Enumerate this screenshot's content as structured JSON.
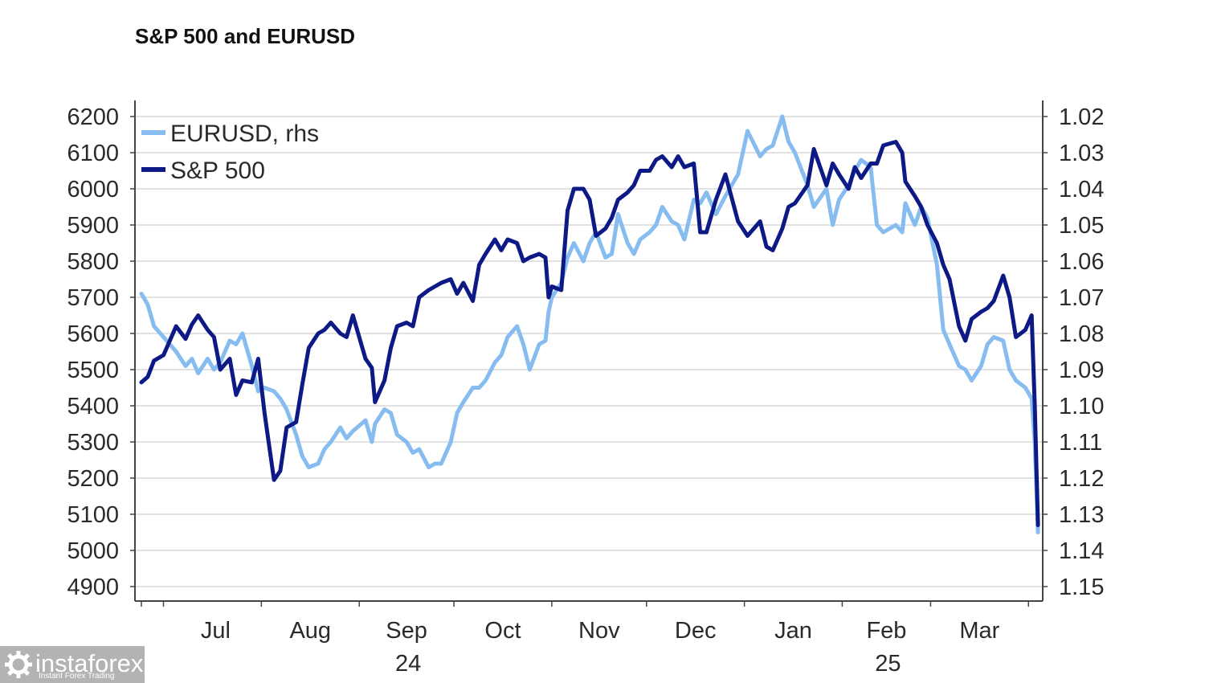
{
  "chart_data": {
    "type": "line",
    "title": "S&P 500 and EURUSD",
    "y_left": {
      "ticks": [
        "4900",
        "5000",
        "5100",
        "5200",
        "5300",
        "5400",
        "5500",
        "5600",
        "5700",
        "5800",
        "5900",
        "6000",
        "6100",
        "6200"
      ],
      "range": [
        4900,
        6200
      ]
    },
    "y_right": {
      "ticks": [
        "1.02",
        "1.03",
        "1.04",
        "1.05",
        "1.06",
        "1.07",
        "1.08",
        "1.09",
        "1.10",
        "1.11",
        "1.12",
        "1.13",
        "1.14",
        "1.15"
      ],
      "range": [
        1.15,
        1.02
      ],
      "inverted": true
    },
    "x_axis": {
      "months": [
        "Jul",
        "Aug",
        "Sep",
        "Oct",
        "Nov",
        "Dec",
        "Jan",
        "Feb",
        "Mar"
      ],
      "years": [
        {
          "label": "24",
          "under": "Sep"
        },
        {
          "label": "25",
          "under": "Feb"
        }
      ],
      "range": [
        "2024-06-24",
        "2025-04-05"
      ]
    },
    "legend": {
      "placement": "top-left",
      "entries": [
        "EURUSD, rhs",
        "S&P 500"
      ]
    },
    "series": [
      {
        "name": "S&P 500",
        "axis": "left",
        "color": "#0d1a86",
        "x": [
          "2024-06-24",
          "2024-06-26",
          "2024-06-28",
          "2024-07-01",
          "2024-07-03",
          "2024-07-05",
          "2024-07-08",
          "2024-07-10",
          "2024-07-12",
          "2024-07-15",
          "2024-07-17",
          "2024-07-19",
          "2024-07-22",
          "2024-07-24",
          "2024-07-26",
          "2024-07-29",
          "2024-07-31",
          "2024-08-02",
          "2024-08-05",
          "2024-08-07",
          "2024-08-09",
          "2024-08-12",
          "2024-08-14",
          "2024-08-16",
          "2024-08-19",
          "2024-08-21",
          "2024-08-23",
          "2024-08-26",
          "2024-08-28",
          "2024-08-30",
          "2024-09-03",
          "2024-09-05",
          "2024-09-06",
          "2024-09-09",
          "2024-09-11",
          "2024-09-13",
          "2024-09-16",
          "2024-09-18",
          "2024-09-20",
          "2024-09-23",
          "2024-09-25",
          "2024-09-27",
          "2024-09-30",
          "2024-10-02",
          "2024-10-04",
          "2024-10-07",
          "2024-10-09",
          "2024-10-11",
          "2024-10-14",
          "2024-10-16",
          "2024-10-18",
          "2024-10-21",
          "2024-10-23",
          "2024-10-25",
          "2024-10-28",
          "2024-10-30",
          "2024-10-31",
          "2024-11-01",
          "2024-11-04",
          "2024-11-06",
          "2024-11-08",
          "2024-11-11",
          "2024-11-13",
          "2024-11-15",
          "2024-11-18",
          "2024-11-20",
          "2024-11-22",
          "2024-11-25",
          "2024-11-27",
          "2024-11-29",
          "2024-12-02",
          "2024-12-04",
          "2024-12-06",
          "2024-12-09",
          "2024-12-11",
          "2024-12-13",
          "2024-12-16",
          "2024-12-18",
          "2024-12-20",
          "2024-12-23",
          "2024-12-26",
          "2024-12-30",
          "2025-01-02",
          "2025-01-06",
          "2025-01-08",
          "2025-01-10",
          "2025-01-13",
          "2025-01-15",
          "2025-01-17",
          "2025-01-21",
          "2025-01-23",
          "2025-01-27",
          "2025-01-29",
          "2025-01-31",
          "2025-02-03",
          "2025-02-05",
          "2025-02-07",
          "2025-02-10",
          "2025-02-12",
          "2025-02-14",
          "2025-02-18",
          "2025-02-20",
          "2025-02-21",
          "2025-02-24",
          "2025-02-26",
          "2025-02-28",
          "2025-03-03",
          "2025-03-05",
          "2025-03-07",
          "2025-03-10",
          "2025-03-12",
          "2025-03-14",
          "2025-03-17",
          "2025-03-19",
          "2025-03-21",
          "2025-03-24",
          "2025-03-26",
          "2025-03-28",
          "2025-03-31",
          "2025-04-02",
          "2025-04-03",
          "2025-04-04"
        ],
        "values": [
          5465,
          5480,
          5525,
          5540,
          5580,
          5620,
          5585,
          5625,
          5650,
          5610,
          5590,
          5500,
          5530,
          5430,
          5470,
          5465,
          5530,
          5380,
          5195,
          5220,
          5340,
          5355,
          5460,
          5560,
          5600,
          5610,
          5630,
          5600,
          5590,
          5650,
          5530,
          5505,
          5410,
          5470,
          5560,
          5620,
          5630,
          5620,
          5700,
          5720,
          5730,
          5740,
          5750,
          5710,
          5740,
          5690,
          5790,
          5820,
          5860,
          5830,
          5860,
          5850,
          5800,
          5810,
          5820,
          5810,
          5700,
          5730,
          5720,
          5940,
          6000,
          6000,
          5970,
          5870,
          5890,
          5920,
          5970,
          5990,
          6010,
          6050,
          6050,
          6080,
          6090,
          6060,
          6090,
          6060,
          6070,
          5880,
          5880,
          5970,
          6040,
          5910,
          5870,
          5910,
          5840,
          5830,
          5890,
          5950,
          5960,
          6010,
          6110,
          6010,
          6070,
          6040,
          6000,
          6060,
          6030,
          6070,
          6070,
          6120,
          6130,
          6100,
          6020,
          5980,
          5950,
          5900,
          5850,
          5790,
          5750,
          5620,
          5580,
          5640,
          5660,
          5670,
          5690,
          5760,
          5700,
          5590,
          5610,
          5650,
          5400,
          5070
        ]
      },
      {
        "name": "EURUSD, rhs",
        "axis": "right",
        "color": "#86bcef",
        "x": [
          "2024-06-24",
          "2024-06-26",
          "2024-06-28",
          "2024-07-01",
          "2024-07-03",
          "2024-07-05",
          "2024-07-08",
          "2024-07-10",
          "2024-07-12",
          "2024-07-15",
          "2024-07-17",
          "2024-07-19",
          "2024-07-22",
          "2024-07-24",
          "2024-07-26",
          "2024-07-29",
          "2024-07-31",
          "2024-08-02",
          "2024-08-05",
          "2024-08-07",
          "2024-08-09",
          "2024-08-12",
          "2024-08-14",
          "2024-08-16",
          "2024-08-19",
          "2024-08-21",
          "2024-08-23",
          "2024-08-26",
          "2024-08-28",
          "2024-08-30",
          "2024-09-03",
          "2024-09-05",
          "2024-09-06",
          "2024-09-09",
          "2024-09-11",
          "2024-09-13",
          "2024-09-16",
          "2024-09-18",
          "2024-09-20",
          "2024-09-23",
          "2024-09-25",
          "2024-09-27",
          "2024-09-30",
          "2024-10-02",
          "2024-10-04",
          "2024-10-07",
          "2024-10-09",
          "2024-10-11",
          "2024-10-14",
          "2024-10-16",
          "2024-10-18",
          "2024-10-21",
          "2024-10-23",
          "2024-10-25",
          "2024-10-28",
          "2024-10-30",
          "2024-10-31",
          "2024-11-01",
          "2024-11-04",
          "2024-11-06",
          "2024-11-08",
          "2024-11-11",
          "2024-11-13",
          "2024-11-15",
          "2024-11-18",
          "2024-11-20",
          "2024-11-22",
          "2024-11-25",
          "2024-11-27",
          "2024-11-29",
          "2024-12-02",
          "2024-12-04",
          "2024-12-06",
          "2024-12-09",
          "2024-12-11",
          "2024-12-13",
          "2024-12-16",
          "2024-12-18",
          "2024-12-20",
          "2024-12-23",
          "2024-12-26",
          "2024-12-30",
          "2025-01-02",
          "2025-01-06",
          "2025-01-08",
          "2025-01-10",
          "2025-01-13",
          "2025-01-15",
          "2025-01-17",
          "2025-01-21",
          "2025-01-23",
          "2025-01-27",
          "2025-01-29",
          "2025-01-31",
          "2025-02-03",
          "2025-02-05",
          "2025-02-07",
          "2025-02-10",
          "2025-02-12",
          "2025-02-14",
          "2025-02-18",
          "2025-02-20",
          "2025-02-21",
          "2025-02-24",
          "2025-02-26",
          "2025-02-28",
          "2025-03-03",
          "2025-03-05",
          "2025-03-07",
          "2025-03-10",
          "2025-03-12",
          "2025-03-14",
          "2025-03-17",
          "2025-03-19",
          "2025-03-21",
          "2025-03-24",
          "2025-03-26",
          "2025-03-28",
          "2025-03-31",
          "2025-04-02",
          "2025-04-03",
          "2025-04-04"
        ],
        "values": [
          1.069,
          1.072,
          1.078,
          1.081,
          1.083,
          1.085,
          1.089,
          1.087,
          1.091,
          1.087,
          1.09,
          1.088,
          1.082,
          1.083,
          1.08,
          1.089,
          1.096,
          1.095,
          1.096,
          1.098,
          1.101,
          1.108,
          1.114,
          1.117,
          1.116,
          1.112,
          1.11,
          1.106,
          1.109,
          1.107,
          1.104,
          1.11,
          1.105,
          1.101,
          1.102,
          1.108,
          1.11,
          1.113,
          1.112,
          1.117,
          1.116,
          1.116,
          1.11,
          1.102,
          1.099,
          1.095,
          1.095,
          1.093,
          1.088,
          1.086,
          1.081,
          1.078,
          1.083,
          1.09,
          1.083,
          1.082,
          1.074,
          1.07,
          1.066,
          1.059,
          1.055,
          1.06,
          1.055,
          1.052,
          1.059,
          1.058,
          1.047,
          1.055,
          1.058,
          1.054,
          1.052,
          1.05,
          1.045,
          1.049,
          1.05,
          1.054,
          1.043,
          1.044,
          1.041,
          1.047,
          1.042,
          1.036,
          1.024,
          1.031,
          1.029,
          1.028,
          1.02,
          1.027,
          1.03,
          1.039,
          1.045,
          1.04,
          1.05,
          1.043,
          1.039,
          1.035,
          1.032,
          1.034,
          1.05,
          1.052,
          1.05,
          1.052,
          1.044,
          1.05,
          1.045,
          1.048,
          1.061,
          1.079,
          1.083,
          1.089,
          1.09,
          1.093,
          1.089,
          1.083,
          1.081,
          1.082,
          1.09,
          1.093,
          1.095,
          1.098,
          1.11,
          1.135
        ]
      }
    ]
  },
  "watermark": {
    "brand": "instaforex",
    "tagline": "Instant Forex Trading",
    "icon": "gear-logo-icon"
  }
}
